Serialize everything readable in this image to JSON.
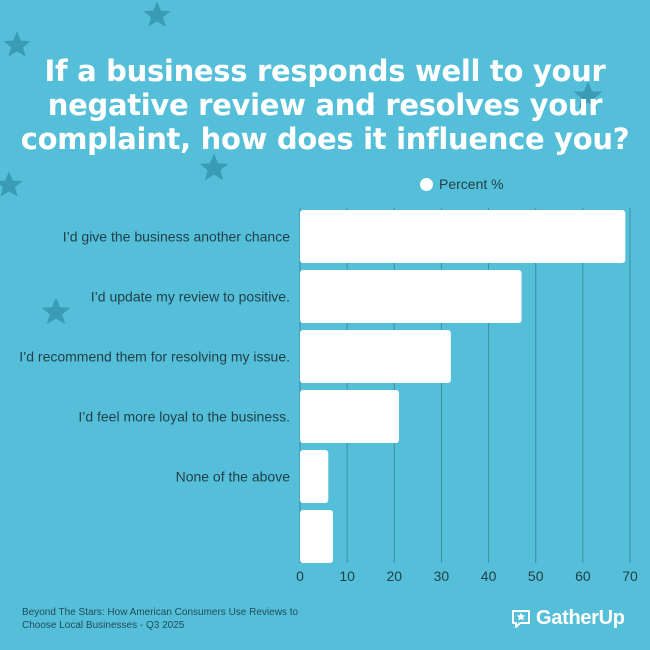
{
  "title_lines": [
    "If a business responds well to your",
    "negative review and resolves your",
    "complaint, how does it influence you?"
  ],
  "colors": {
    "background": "#55bfd9",
    "bar": "#ffffff",
    "gridline": "#3a8ea3",
    "label_text": "#21404a",
    "star": "#3a9bb4"
  },
  "chart_data": {
    "type": "bar",
    "orientation": "horizontal",
    "legend": {
      "label": "Percent %",
      "position": "top"
    },
    "categories": [
      "I’d give the business another chance",
      "I’d update my review to positive.",
      "I’d recommend them for resolving my issue.",
      "I’d feel more loyal to the business.",
      "None of the above",
      ""
    ],
    "values": [
      69,
      47,
      32,
      21,
      6,
      7
    ],
    "xlim": [
      0,
      70
    ],
    "xticks": [
      "0",
      "10",
      "20",
      "30",
      "40",
      "50",
      "60",
      "70"
    ],
    "grid": true
  },
  "footer": {
    "source_line1": "Beyond The Stars: How American Consumers Use Reviews to",
    "source_line2": "Choose Local Businesses - Q3 2025",
    "brand_name": "GatherUp",
    "brand_icon": "gatherup-logo-icon"
  },
  "decoration": {
    "icon": "star-icon"
  }
}
